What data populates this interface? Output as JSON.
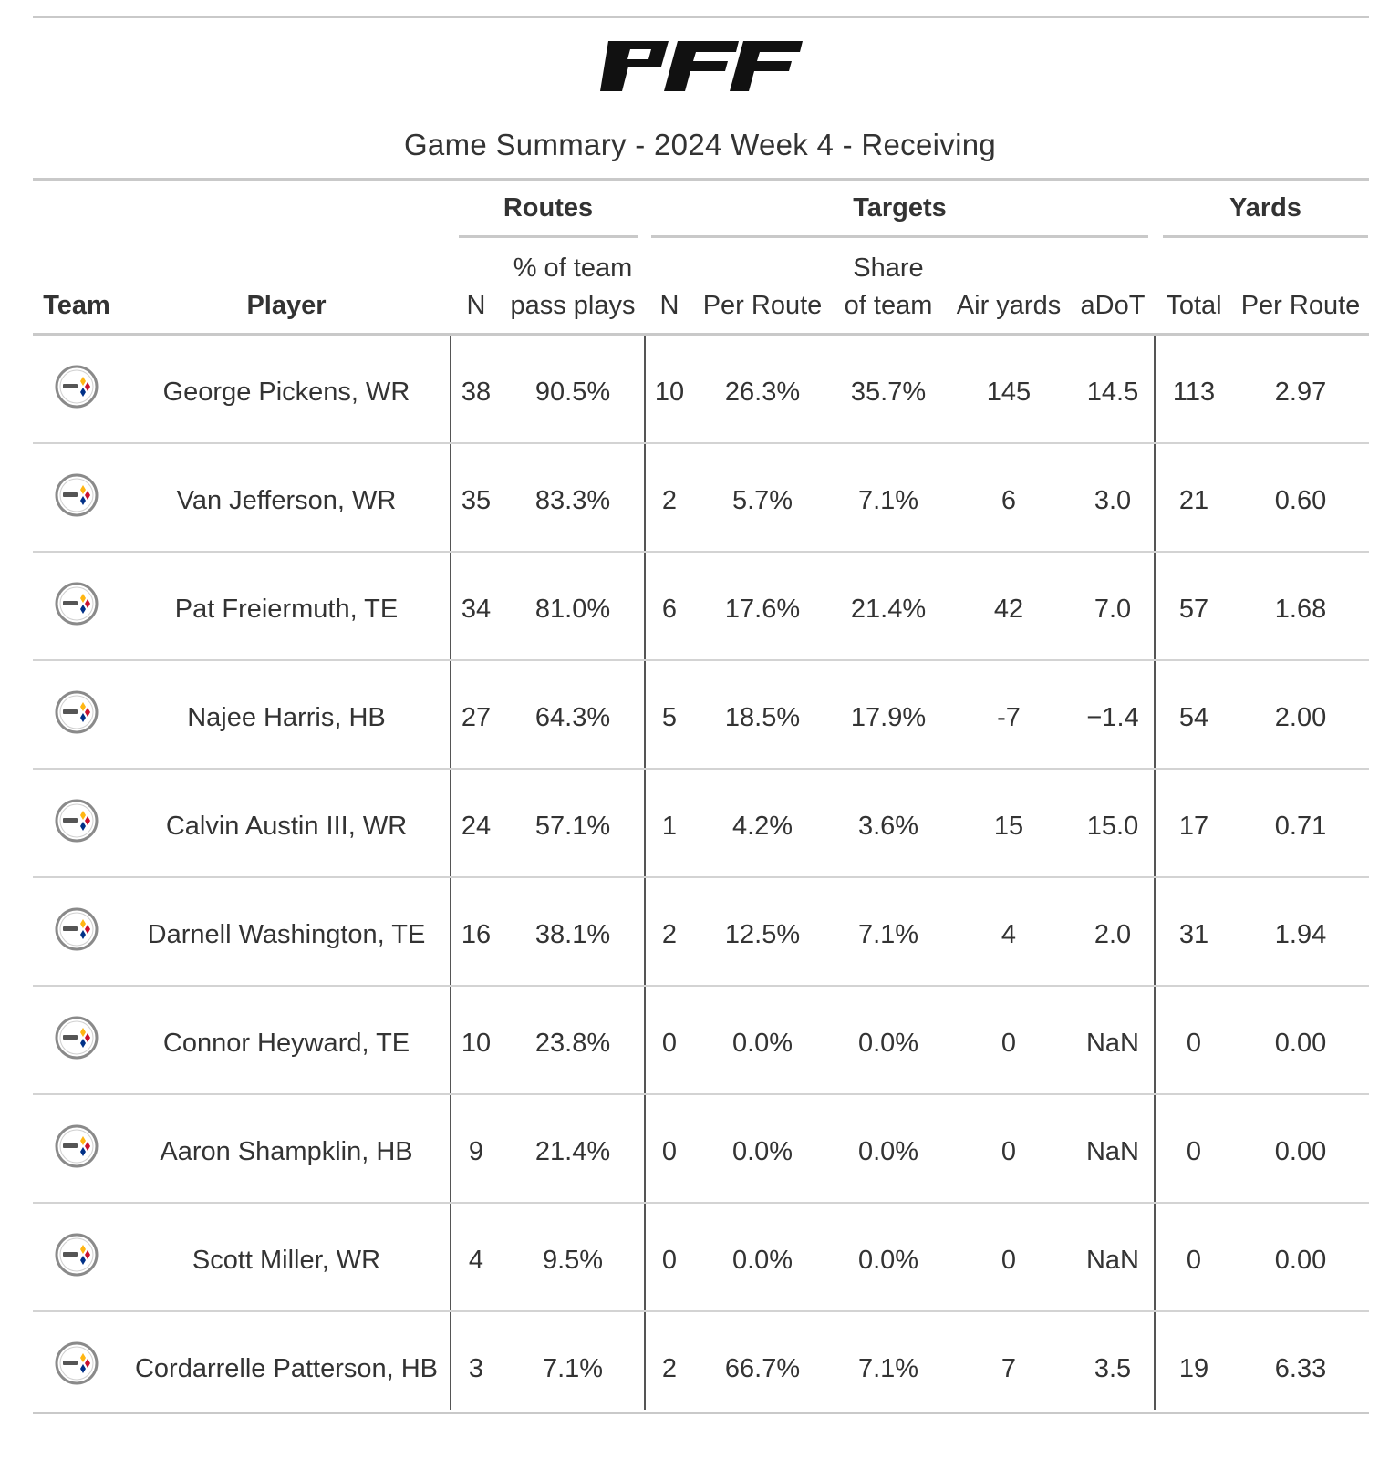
{
  "logo_text": "PFF",
  "title": "Game Summary - 2024 Week 4 - Receiving",
  "spanners": {
    "routes": "Routes",
    "targets": "Targets",
    "yards": "Yards"
  },
  "headers": {
    "team": "Team",
    "player": "Player",
    "routes_n": "N",
    "routes_pct_line1": "% of team",
    "routes_pct_line2": "pass plays",
    "targets_n": "N",
    "targets_per_route": "Per Route",
    "share_line1": "Share",
    "share_line2": "of team",
    "air_yards": "Air yards",
    "adot": "aDoT",
    "yards_total": "Total",
    "yards_per_route": "Per Route"
  },
  "team_icon": "steelers-logo-icon",
  "rows": [
    {
      "player": "George Pickens, WR",
      "routes_n": "38",
      "routes_pct": "90.5%",
      "targets_n": "10",
      "targets_per_route": "26.3%",
      "share": "35.7%",
      "air_yards": "145",
      "adot": "14.5",
      "yards_total": "113",
      "yards_per_route": "2.97"
    },
    {
      "player": "Van Jefferson, WR",
      "routes_n": "35",
      "routes_pct": "83.3%",
      "targets_n": "2",
      "targets_per_route": "5.7%",
      "share": "7.1%",
      "air_yards": "6",
      "adot": "3.0",
      "yards_total": "21",
      "yards_per_route": "0.60"
    },
    {
      "player": "Pat Freiermuth, TE",
      "routes_n": "34",
      "routes_pct": "81.0%",
      "targets_n": "6",
      "targets_per_route": "17.6%",
      "share": "21.4%",
      "air_yards": "42",
      "adot": "7.0",
      "yards_total": "57",
      "yards_per_route": "1.68"
    },
    {
      "player": "Najee Harris, HB",
      "routes_n": "27",
      "routes_pct": "64.3%",
      "targets_n": "5",
      "targets_per_route": "18.5%",
      "share": "17.9%",
      "air_yards": "-7",
      "adot": "−1.4",
      "yards_total": "54",
      "yards_per_route": "2.00"
    },
    {
      "player": "Calvin Austin III, WR",
      "routes_n": "24",
      "routes_pct": "57.1%",
      "targets_n": "1",
      "targets_per_route": "4.2%",
      "share": "3.6%",
      "air_yards": "15",
      "adot": "15.0",
      "yards_total": "17",
      "yards_per_route": "0.71"
    },
    {
      "player": "Darnell Washington, TE",
      "routes_n": "16",
      "routes_pct": "38.1%",
      "targets_n": "2",
      "targets_per_route": "12.5%",
      "share": "7.1%",
      "air_yards": "4",
      "adot": "2.0",
      "yards_total": "31",
      "yards_per_route": "1.94"
    },
    {
      "player": "Connor Heyward, TE",
      "routes_n": "10",
      "routes_pct": "23.8%",
      "targets_n": "0",
      "targets_per_route": "0.0%",
      "share": "0.0%",
      "air_yards": "0",
      "adot": "NaN",
      "yards_total": "0",
      "yards_per_route": "0.00"
    },
    {
      "player": "Aaron Shampklin, HB",
      "routes_n": "9",
      "routes_pct": "21.4%",
      "targets_n": "0",
      "targets_per_route": "0.0%",
      "share": "0.0%",
      "air_yards": "0",
      "adot": "NaN",
      "yards_total": "0",
      "yards_per_route": "0.00"
    },
    {
      "player": "Scott Miller, WR",
      "routes_n": "4",
      "routes_pct": "9.5%",
      "targets_n": "0",
      "targets_per_route": "0.0%",
      "share": "0.0%",
      "air_yards": "0",
      "adot": "NaN",
      "yards_total": "0",
      "yards_per_route": "0.00"
    },
    {
      "player": "Cordarrelle Patterson, HB",
      "routes_n": "3",
      "routes_pct": "7.1%",
      "targets_n": "2",
      "targets_per_route": "66.7%",
      "share": "7.1%",
      "air_yards": "7",
      "adot": "3.5",
      "yards_total": "19",
      "yards_per_route": "6.33"
    }
  ]
}
